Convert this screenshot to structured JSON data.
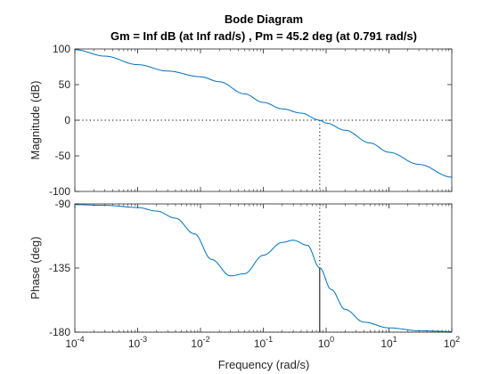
{
  "chart_data": {
    "type": "line",
    "title": "Bode Diagram",
    "subtitle": "Gm = Inf dB (at Inf rad/s) ,  Pm = 45.2 deg (at 0.791 rad/s)",
    "xlabel": "Frequency  (rad/s)",
    "x_scale": "log",
    "xlim": [
      0.0001,
      100
    ],
    "x_ticks": [
      0.0001,
      0.001,
      0.01,
      0.1,
      1,
      10,
      100
    ],
    "x_tick_labels": [
      {
        "base": "10",
        "exp": "-4"
      },
      {
        "base": "10",
        "exp": "-3"
      },
      {
        "base": "10",
        "exp": "-2"
      },
      {
        "base": "10",
        "exp": "-1"
      },
      {
        "base": "10",
        "exp": "0"
      },
      {
        "base": "10",
        "exp": "1"
      },
      {
        "base": "10",
        "exp": "2"
      }
    ],
    "line_color": "#0072bd",
    "crossover_frequency": 0.791,
    "phase_margin_deg": 45.2,
    "panels": [
      {
        "ylabel": "Magnitude (dB)",
        "ylim": [
          -100,
          100
        ],
        "y_ticks": [
          100,
          50,
          0,
          -50,
          -100
        ],
        "y_tick_labels": [
          "100",
          "50",
          "0",
          "-50",
          "-100"
        ],
        "reference_line": 0,
        "series": [
          {
            "x": [
              0.0001,
              0.0003,
              0.001,
              0.003,
              0.01,
              0.02,
              0.05,
              0.1,
              0.2,
              0.4,
              0.791,
              1,
              2,
              5,
              10,
              30,
              100
            ],
            "y": [
              99,
              90,
              78,
              69,
              61,
              54,
              37,
              25,
              16,
              10,
              0,
              -4,
              -14,
              -32,
              -45,
              -62,
              -80
            ]
          }
        ]
      },
      {
        "ylabel": "Phase (deg)",
        "ylim": [
          -180,
          -90
        ],
        "y_ticks": [
          -90,
          -135,
          -180
        ],
        "y_tick_labels": [
          "-90",
          "-135",
          "-180"
        ],
        "reference_line": -180,
        "series": [
          {
            "x": [
              0.0001,
              0.0003,
              0.001,
              0.002,
              0.004,
              0.008,
              0.015,
              0.03,
              0.05,
              0.1,
              0.2,
              0.3,
              0.5,
              0.791,
              1.2,
              2,
              4,
              10,
              30,
              100
            ],
            "y": [
              -90.5,
              -91,
              -92.5,
              -95,
              -100,
              -111,
              -129,
              -140.5,
              -139,
              -126,
              -117,
              -115.5,
              -119,
              -134.8,
              -150,
              -164,
              -173,
              -177,
              -179,
              -179.6
            ]
          }
        ]
      }
    ]
  }
}
